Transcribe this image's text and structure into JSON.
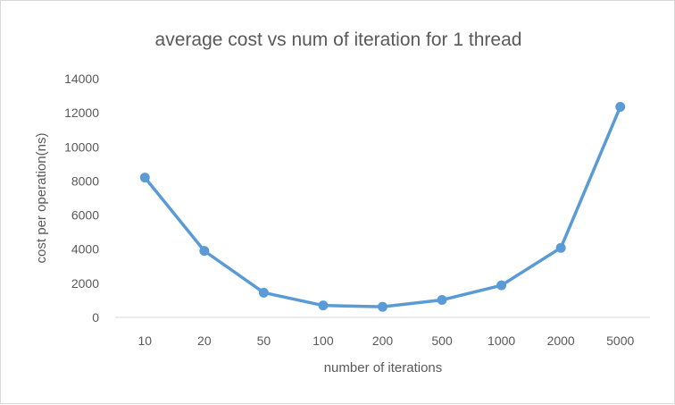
{
  "chart_data": {
    "type": "line",
    "title": "average cost vs num of iteration for 1 thread",
    "xlabel": "number of iterations",
    "ylabel": "cost per operation(ns)",
    "categories": [
      "10",
      "20",
      "50",
      "100",
      "200",
      "500",
      "1000",
      "2000",
      "5000"
    ],
    "series": [
      {
        "values": [
          8200,
          3900,
          1450,
          700,
          620,
          1020,
          1880,
          4080,
          12350
        ],
        "color": "#5b9bd5"
      }
    ],
    "ylim": [
      0,
      14000
    ],
    "yticks": [
      0,
      2000,
      4000,
      6000,
      8000,
      10000,
      12000,
      14000
    ],
    "grid": false,
    "legend": "none",
    "markers": "circle"
  }
}
